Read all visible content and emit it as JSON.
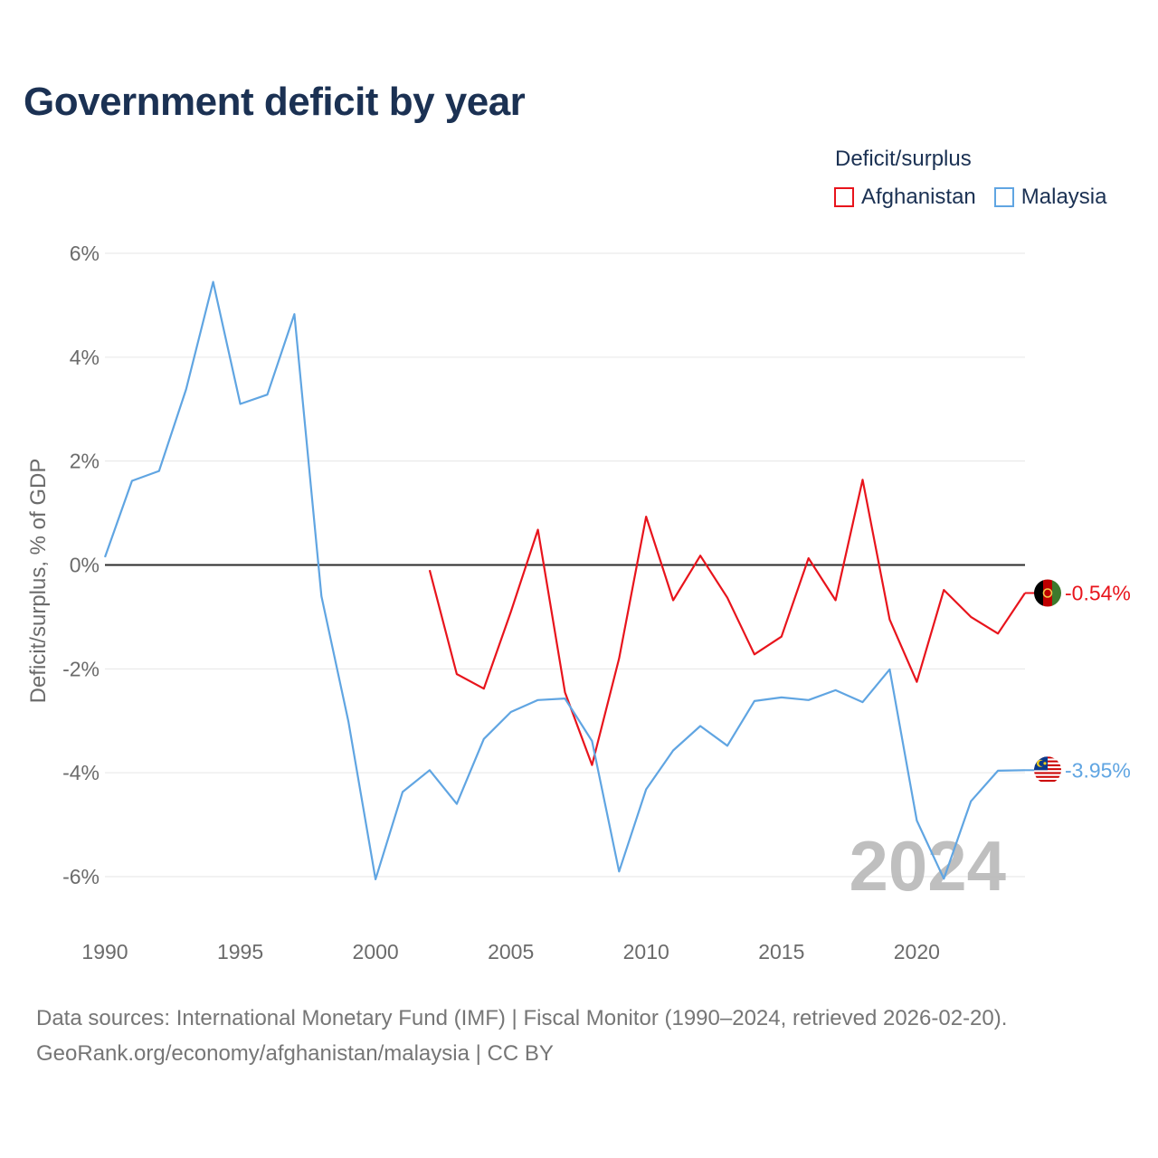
{
  "title": "Government deficit by year",
  "legend": {
    "title": "Deficit/surplus",
    "items": [
      {
        "label": "Afghanistan",
        "color": "#e8141c"
      },
      {
        "label": "Malaysia",
        "color": "#60a5e2"
      }
    ]
  },
  "chart_data": {
    "type": "line",
    "title": "Government deficit by year",
    "ylabel": "Deficit/surplus, % of GDP",
    "xlabel": "",
    "xlim": [
      1990,
      2024
    ],
    "ylim": [
      -7,
      6
    ],
    "yticks": [
      6,
      4,
      2,
      0,
      -2,
      -4,
      -6
    ],
    "ytick_labels": [
      "6%",
      "4%",
      "2%",
      "0%",
      "-2%",
      "-4%",
      "-6%"
    ],
    "xticks": [
      1990,
      1995,
      2000,
      2005,
      2010,
      2015,
      2020
    ],
    "xtick_labels": [
      "1990",
      "1995",
      "2000",
      "2005",
      "2010",
      "2015",
      "2020"
    ],
    "watermark_year": "2024",
    "grid": true,
    "zero_line": true,
    "series": [
      {
        "name": "Afghanistan",
        "color": "#e8141c",
        "end_label": "-0.54%",
        "x": [
          2002,
          2003,
          2004,
          2005,
          2006,
          2007,
          2008,
          2009,
          2010,
          2011,
          2012,
          2013,
          2014,
          2015,
          2016,
          2017,
          2018,
          2019,
          2020,
          2021,
          2022,
          2023,
          2024
        ],
        "y": [
          -0.1,
          -2.1,
          -2.38,
          -0.9,
          0.68,
          -2.45,
          -3.85,
          -1.8,
          0.93,
          -0.68,
          0.18,
          -0.63,
          -1.72,
          -1.38,
          0.13,
          -0.68,
          1.64,
          -1.05,
          -2.25,
          -0.48,
          -1.0,
          -1.32,
          -0.54
        ]
      },
      {
        "name": "Malaysia",
        "color": "#60a5e2",
        "end_label": "-3.95%",
        "x": [
          1990,
          1991,
          1992,
          1993,
          1994,
          1995,
          1996,
          1997,
          1998,
          1999,
          2000,
          2001,
          2002,
          2003,
          2004,
          2005,
          2006,
          2007,
          2008,
          2009,
          2010,
          2011,
          2012,
          2013,
          2014,
          2015,
          2016,
          2017,
          2018,
          2019,
          2020,
          2021,
          2022,
          2023,
          2024
        ],
        "y": [
          0.15,
          1.62,
          1.81,
          3.38,
          5.45,
          3.1,
          3.28,
          4.83,
          -0.6,
          -3.02,
          -6.05,
          -4.37,
          -3.95,
          -4.6,
          -3.35,
          -2.83,
          -2.6,
          -2.57,
          -3.39,
          -5.9,
          -4.32,
          -3.57,
          -3.1,
          -3.48,
          -2.62,
          -2.55,
          -2.6,
          -2.41,
          -2.64,
          -2.01,
          -4.92,
          -6.04,
          -4.55,
          -3.96,
          -3.95
        ]
      }
    ]
  },
  "footer": {
    "line1": "Data sources: International Monetary Fund (IMF) | Fiscal Monitor (1990–2024, retrieved 2026-02-20).",
    "line2": "GeoRank.org/economy/afghanistan/malaysia | CC BY"
  }
}
